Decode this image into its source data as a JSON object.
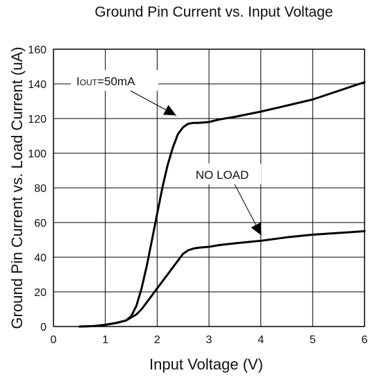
{
  "chart_data": {
    "type": "line",
    "title": "Ground Pin Current vs. Input Voltage",
    "xlabel": "Input Voltage (V)",
    "ylabel": "Ground Pin Current vs. Load Current (uA)",
    "xlim": [
      0,
      6
    ],
    "ylim": [
      0,
      160
    ],
    "xticks": [
      "0",
      "1",
      "2",
      "3",
      "4",
      "5",
      "6"
    ],
    "yticks": [
      "0",
      "20",
      "40",
      "60",
      "80",
      "100",
      "120",
      "140",
      "160"
    ],
    "grid": true,
    "series": [
      {
        "name": "IOUT=50mA",
        "x": [
          0.5,
          0.8,
          1.0,
          1.2,
          1.4,
          1.5,
          1.6,
          1.7,
          1.8,
          1.9,
          2.0,
          2.1,
          2.2,
          2.3,
          2.4,
          2.5,
          2.6,
          2.7,
          2.8,
          3.0,
          3.2,
          3.5,
          4.0,
          4.5,
          5.0,
          5.5,
          6.0
        ],
        "y": [
          0,
          0.3,
          1,
          2,
          3.5,
          6,
          12,
          22,
          35,
          50,
          65,
          80,
          93,
          103,
          111,
          115,
          117,
          117.5,
          117.5,
          118,
          119.5,
          121,
          124,
          127.5,
          131,
          136,
          141
        ]
      },
      {
        "name": "NO LOAD",
        "x": [
          0.5,
          0.8,
          1.0,
          1.2,
          1.4,
          1.6,
          1.7,
          1.8,
          1.9,
          2.0,
          2.1,
          2.2,
          2.3,
          2.4,
          2.5,
          2.6,
          2.7,
          2.8,
          3.0,
          3.2,
          3.5,
          4.0,
          4.5,
          5.0,
          5.5,
          6.0
        ],
        "y": [
          0,
          0.3,
          1,
          2,
          3.5,
          7,
          10,
          14,
          18,
          22,
          26,
          30,
          34,
          38,
          42,
          44,
          45,
          45.5,
          46,
          47,
          48,
          49.5,
          51.5,
          53,
          54,
          55
        ]
      }
    ],
    "annotations": [
      {
        "main": "I",
        "sub": "OUT",
        "rest": "=50mA",
        "arrow_to": [
          2.3,
          117
        ]
      },
      {
        "text": "NO LOAD",
        "arrow_to": [
          4.05,
          49
        ]
      }
    ]
  }
}
